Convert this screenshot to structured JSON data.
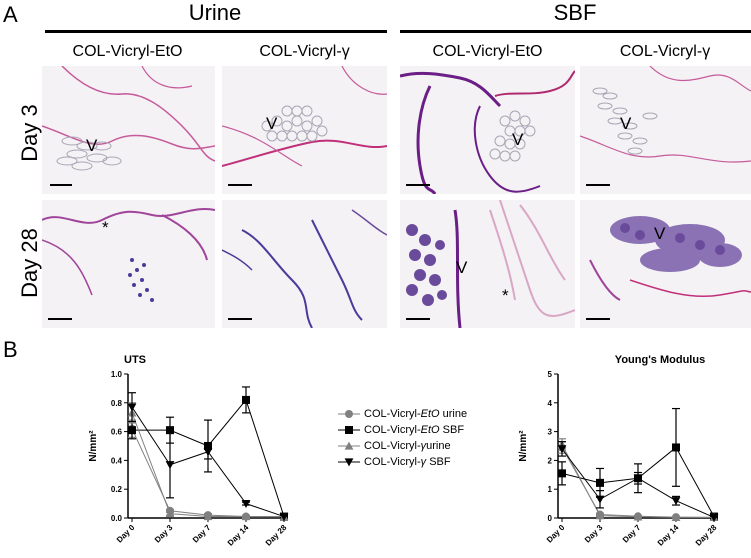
{
  "panel_a": {
    "letter": "A",
    "groups": [
      {
        "title": "Urine"
      },
      {
        "title": "SBF"
      }
    ],
    "columns": [
      {
        "title": "COL-Vicryl-EtO"
      },
      {
        "title": "COL-Vicryl-γ"
      },
      {
        "title": "COL-Vicryl-EtO"
      },
      {
        "title": "COL-Vicryl-γ"
      }
    ],
    "rows": [
      {
        "label": "Day 3"
      },
      {
        "label": "Day 28"
      }
    ],
    "markers": {
      "vicryl": "V",
      "asterisk": "*"
    },
    "colors": {
      "collagen_pink": "#c0307a",
      "dark_purple": "#6a1e86",
      "hematoxylin": "#4a3a9a",
      "background": "#f4f2f5"
    }
  },
  "panel_b": {
    "letter": "B",
    "legend": [
      {
        "prefix": "COL-Vicryl-",
        "italic": "EtO",
        "suffix": " urine",
        "marker": "circle",
        "color": "#808080"
      },
      {
        "prefix": "COL-Vicryl-",
        "italic": "EtO",
        "suffix": " SBF",
        "marker": "square",
        "color": "#000000"
      },
      {
        "prefix": "COL-Vicryl-",
        "italic": "γ",
        "suffix": "urine",
        "marker": "triangle-up",
        "color": "#808080"
      },
      {
        "prefix": "COL-Vicryl-",
        "italic": "γ",
        "suffix": " SBF",
        "marker": "triangle-down",
        "color": "#000000"
      }
    ]
  },
  "chart_data": [
    {
      "type": "line",
      "title": "UTS",
      "ylabel": "N/mm²",
      "xlabel": "",
      "categories": [
        "Day 0",
        "Day 3",
        "Day 7",
        "Day 14",
        "Day 28"
      ],
      "ylim": [
        0,
        1.0
      ],
      "yticks": [
        "0.0",
        "0.2",
        "0.4",
        "0.6",
        "0.8",
        "1.0"
      ],
      "series": [
        {
          "name": "COL-Vicryl-EtO urine",
          "marker": "circle",
          "color": "#808080",
          "values": [
            0.62,
            0.05,
            0.02,
            0.01,
            0.01
          ],
          "errors": [
            0.06,
            0.01,
            0.01,
            0.01,
            0.0
          ]
        },
        {
          "name": "COL-Vicryl-EtO SBF",
          "marker": "square",
          "color": "#000000",
          "values": [
            0.61,
            0.61,
            0.5,
            0.82,
            0.01
          ],
          "errors": [
            0.06,
            0.09,
            0.18,
            0.09,
            0.0
          ]
        },
        {
          "name": "COL-Vicryl-γ urine",
          "marker": "triangle-up",
          "color": "#808080",
          "values": [
            0.73,
            0.03,
            0.01,
            0.01,
            0.01
          ],
          "errors": [
            0.07,
            0.01,
            0.0,
            0.0,
            0.0
          ]
        },
        {
          "name": "COL-Vicryl-γ SBF",
          "marker": "triangle-down",
          "color": "#000000",
          "values": [
            0.77,
            0.37,
            0.46,
            0.1,
            0.01
          ],
          "errors": [
            0.1,
            0.23,
            0.05,
            0.01,
            0.0
          ]
        }
      ]
    },
    {
      "type": "line",
      "title": "Young's Modulus",
      "ylabel": "N/mm²",
      "xlabel": "",
      "categories": [
        "Day 0",
        "Day 3",
        "Day 7",
        "Day 14",
        "Day 28"
      ],
      "ylim": [
        0,
        5
      ],
      "yticks": [
        "0",
        "1",
        "2",
        "3",
        "4",
        "5"
      ],
      "series": [
        {
          "name": "COL-Vicryl-EtO urine",
          "marker": "circle",
          "color": "#808080",
          "values": [
            2.45,
            0.12,
            0.06,
            0.03,
            0.02
          ],
          "errors": [
            0.2,
            0.05,
            0.02,
            0.01,
            0.0
          ]
        },
        {
          "name": "COL-Vicryl-EtO SBF",
          "marker": "square",
          "color": "#000000",
          "values": [
            1.55,
            1.22,
            1.38,
            2.45,
            0.05
          ],
          "errors": [
            0.4,
            0.5,
            0.5,
            1.35,
            0.02
          ]
        },
        {
          "name": "COL-Vicryl-γ urine",
          "marker": "triangle-up",
          "color": "#808080",
          "values": [
            2.55,
            0.08,
            0.04,
            0.02,
            0.02
          ],
          "errors": [
            0.2,
            0.03,
            0.01,
            0.0,
            0.0
          ]
        },
        {
          "name": "COL-Vicryl-γ SBF",
          "marker": "triangle-down",
          "color": "#000000",
          "values": [
            2.4,
            0.65,
            1.38,
            0.6,
            0.02
          ],
          "errors": [
            0.25,
            0.3,
            0.2,
            0.15,
            0.0
          ]
        }
      ]
    }
  ]
}
